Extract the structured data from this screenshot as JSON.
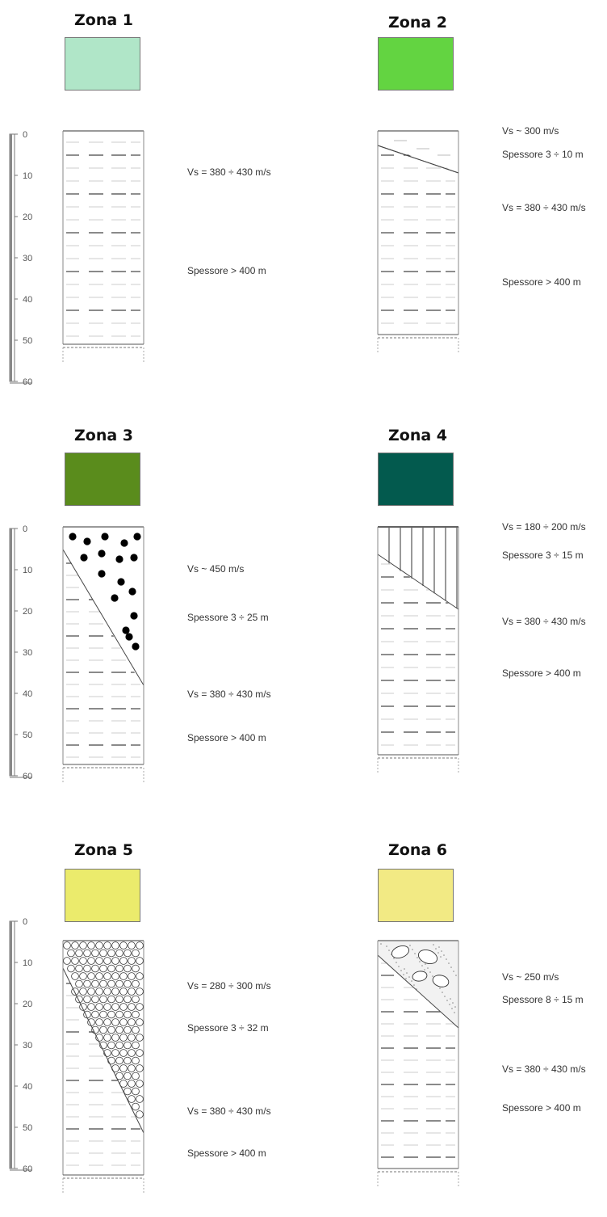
{
  "zones": [
    {
      "title": "Zona 1",
      "color": "#b0e6c8",
      "notes": [
        "Vs = 380 ÷ 430 m/s",
        "Spessore > 400 m"
      ]
    },
    {
      "title": "Zona 2",
      "color": "#63d441",
      "notes": [
        "Vs ~ 300 m/s",
        "Spessore 3 ÷ 10 m",
        "Vs = 380 ÷ 430 m/s",
        "Spessore > 400 m"
      ]
    },
    {
      "title": "Zona 3",
      "color": "#5a8c1c",
      "notes": [
        "Vs ~ 450 m/s",
        "Spessore 3 ÷ 25 m",
        "Vs = 380 ÷ 430 m/s",
        "Spessore > 400 m"
      ]
    },
    {
      "title": "Zona 4",
      "color": "#035a4e",
      "notes": [
        "Vs = 180 ÷ 200 m/s",
        "Spessore 3 ÷ 15 m",
        "Vs = 380 ÷ 430 m/s",
        "Spessore > 400 m"
      ]
    },
    {
      "title": "Zona 5",
      "color": "#ebeb6c",
      "notes": [
        "Vs = 280 ÷ 300 m/s",
        "Spessore 3 ÷ 32 m",
        "Vs = 380 ÷ 430 m/s",
        "Spessore > 400 m"
      ]
    },
    {
      "title": "Zona 6",
      "color": "#f2ea84",
      "notes": [
        "Vs ~ 250 m/s",
        "Spessore 8 ÷ 15 m",
        "Vs = 380 ÷ 430 m/s",
        "Spessore > 400 m"
      ]
    }
  ],
  "depth_scale": {
    "ticks": [
      "0",
      "10",
      "20",
      "30",
      "40",
      "50",
      "60"
    ]
  }
}
